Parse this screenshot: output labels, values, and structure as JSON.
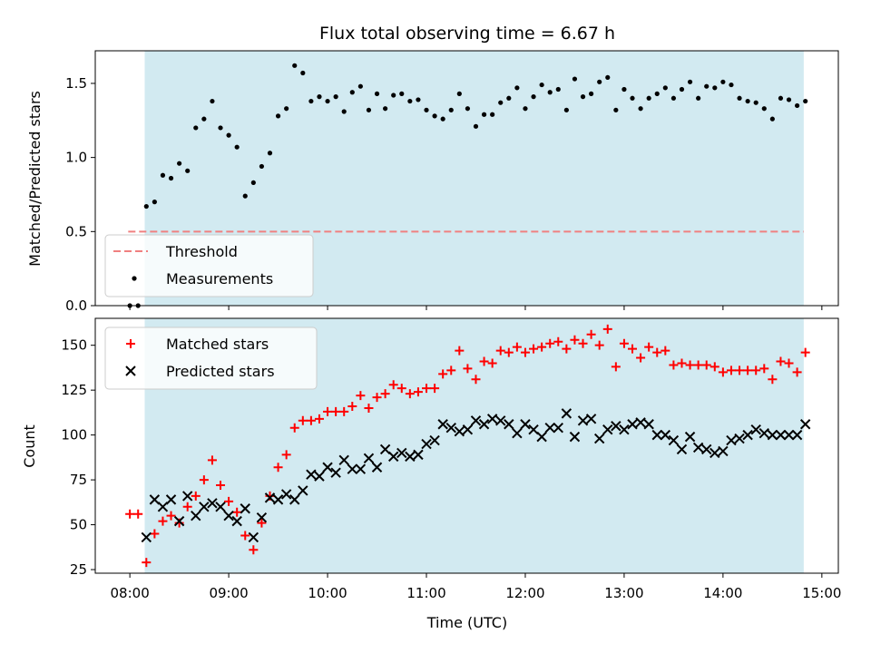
{
  "chart_data": {
    "type": "scatter",
    "title": "Flux total observing time = 6.67 h",
    "colors": {
      "shade": "#add8e6",
      "threshold": "#f08080",
      "measurements": "#000000",
      "matched": "#ff0000",
      "predicted": "#000000"
    },
    "x_ticks": [
      "08:00",
      "09:00",
      "10:00",
      "11:00",
      "12:00",
      "13:00",
      "14:00",
      "15:00"
    ],
    "xlabel": "Time (UTC)",
    "xlim": [
      "07:39",
      "15:10"
    ],
    "shaded_interval": [
      "08:09",
      "14:49"
    ],
    "panels": [
      {
        "ylabel": "Matched/Predicted stars",
        "ylim": [
          0,
          1.72
        ],
        "y_ticks": [
          0.0,
          0.5,
          1.0,
          1.5
        ],
        "y_tick_labels": [
          "0.0",
          "0.5",
          "1.0",
          "1.5"
        ],
        "legend": {
          "placement": "lower-left",
          "entries": [
            "Threshold",
            "Measurements"
          ]
        },
        "threshold": {
          "name": "Threshold",
          "value": 0.5,
          "x_start": "07:59",
          "x_end": "14:49"
        },
        "series": [
          {
            "name": "Measurements",
            "marker": "dot",
            "x": [
              "08:00",
              "08:05",
              "08:10",
              "08:15",
              "08:20",
              "08:25",
              "08:30",
              "08:35",
              "08:40",
              "08:45",
              "08:50",
              "08:55",
              "09:00",
              "09:05",
              "09:10",
              "09:15",
              "09:20",
              "09:25",
              "09:30",
              "09:35",
              "09:40",
              "09:45",
              "09:50",
              "09:55",
              "10:00",
              "10:05",
              "10:10",
              "10:15",
              "10:20",
              "10:25",
              "10:30",
              "10:35",
              "10:40",
              "10:45",
              "10:50",
              "10:55",
              "11:00",
              "11:05",
              "11:10",
              "11:15",
              "11:20",
              "11:25",
              "11:30",
              "11:35",
              "11:40",
              "11:45",
              "11:50",
              "11:55",
              "12:00",
              "12:05",
              "12:10",
              "12:15",
              "12:20",
              "12:25",
              "12:30",
              "12:35",
              "12:40",
              "12:45",
              "12:50",
              "12:55",
              "13:00",
              "13:05",
              "13:10",
              "13:15",
              "13:20",
              "13:25",
              "13:30",
              "13:35",
              "13:40",
              "13:45",
              "13:50",
              "13:55",
              "14:00",
              "14:05",
              "14:10",
              "14:15",
              "14:20",
              "14:25",
              "14:30",
              "14:35",
              "14:40",
              "14:45",
              "14:50"
            ],
            "y": [
              0.0,
              0.0,
              0.67,
              0.7,
              0.88,
              0.86,
              0.96,
              0.91,
              1.2,
              1.26,
              1.38,
              1.2,
              1.15,
              1.07,
              0.74,
              0.83,
              0.94,
              1.03,
              1.28,
              1.33,
              1.62,
              1.57,
              1.38,
              1.41,
              1.38,
              1.41,
              1.31,
              1.44,
              1.48,
              1.32,
              1.43,
              1.33,
              1.42,
              1.43,
              1.38,
              1.39,
              1.32,
              1.28,
              1.26,
              1.32,
              1.43,
              1.33,
              1.21,
              1.29,
              1.29,
              1.37,
              1.4,
              1.47,
              1.33,
              1.41,
              1.49,
              1.44,
              1.46,
              1.32,
              1.53,
              1.41,
              1.43,
              1.51,
              1.54,
              1.32,
              1.46,
              1.4,
              1.33,
              1.4,
              1.43,
              1.47,
              1.4,
              1.46,
              1.51,
              1.4,
              1.48,
              1.47,
              1.51,
              1.49,
              1.4,
              1.38,
              1.37,
              1.33,
              1.26,
              1.4,
              1.39,
              1.35,
              1.38
            ]
          }
        ]
      },
      {
        "ylabel": "Count",
        "ylim": [
          23,
          165
        ],
        "y_ticks": [
          25,
          50,
          75,
          100,
          125,
          150
        ],
        "y_tick_labels": [
          "25",
          "50",
          "75",
          "100",
          "125",
          "150"
        ],
        "legend": {
          "placement": "upper-left",
          "entries": [
            "Matched stars",
            "Predicted stars"
          ]
        },
        "series": [
          {
            "name": "Matched stars",
            "marker": "plus",
            "x": [
              "08:00",
              "08:05",
              "08:10",
              "08:15",
              "08:20",
              "08:25",
              "08:30",
              "08:35",
              "08:40",
              "08:45",
              "08:50",
              "08:55",
              "09:00",
              "09:05",
              "09:10",
              "09:15",
              "09:20",
              "09:25",
              "09:30",
              "09:35",
              "09:40",
              "09:45",
              "09:50",
              "09:55",
              "10:00",
              "10:05",
              "10:10",
              "10:15",
              "10:20",
              "10:25",
              "10:30",
              "10:35",
              "10:40",
              "10:45",
              "10:50",
              "10:55",
              "11:00",
              "11:05",
              "11:10",
              "11:15",
              "11:20",
              "11:25",
              "11:30",
              "11:35",
              "11:40",
              "11:45",
              "11:50",
              "11:55",
              "12:00",
              "12:05",
              "12:10",
              "12:15",
              "12:20",
              "12:25",
              "12:30",
              "12:35",
              "12:40",
              "12:45",
              "12:50",
              "12:55",
              "13:00",
              "13:05",
              "13:10",
              "13:15",
              "13:20",
              "13:25",
              "13:30",
              "13:35",
              "13:40",
              "13:45",
              "13:50",
              "13:55",
              "14:00",
              "14:05",
              "14:10",
              "14:15",
              "14:20",
              "14:25",
              "14:30",
              "14:35",
              "14:40",
              "14:45",
              "14:50"
            ],
            "y": [
              56,
              56,
              29,
              45,
              52,
              55,
              51,
              60,
              66,
              75,
              86,
              72,
              63,
              57,
              44,
              36,
              51,
              66,
              82,
              89,
              104,
              108,
              108,
              109,
              113,
              113,
              113,
              116,
              122,
              115,
              121,
              123,
              128,
              126,
              123,
              124,
              126,
              126,
              134,
              136,
              147,
              137,
              131,
              141,
              140,
              147,
              146,
              149,
              146,
              148,
              149,
              151,
              152,
              148,
              153,
              151,
              156,
              150,
              159,
              138,
              151,
              148,
              143,
              149,
              146,
              147,
              139,
              140,
              139,
              139,
              139,
              138,
              135,
              136,
              136,
              136,
              136,
              137,
              131,
              141,
              140,
              135,
              146
            ]
          },
          {
            "name": "Predicted stars",
            "marker": "x",
            "x": [
              "08:10",
              "08:15",
              "08:20",
              "08:25",
              "08:30",
              "08:35",
              "08:40",
              "08:45",
              "08:50",
              "08:55",
              "09:00",
              "09:05",
              "09:10",
              "09:15",
              "09:20",
              "09:25",
              "09:30",
              "09:35",
              "09:40",
              "09:45",
              "09:50",
              "09:55",
              "10:00",
              "10:05",
              "10:10",
              "10:15",
              "10:20",
              "10:25",
              "10:30",
              "10:35",
              "10:40",
              "10:45",
              "10:50",
              "10:55",
              "11:00",
              "11:05",
              "11:10",
              "11:15",
              "11:20",
              "11:25",
              "11:30",
              "11:35",
              "11:40",
              "11:45",
              "11:50",
              "11:55",
              "12:00",
              "12:05",
              "12:10",
              "12:15",
              "12:20",
              "12:25",
              "12:30",
              "12:35",
              "12:40",
              "12:45",
              "12:50",
              "12:55",
              "13:00",
              "13:05",
              "13:10",
              "13:15",
              "13:20",
              "13:25",
              "13:30",
              "13:35",
              "13:40",
              "13:45",
              "13:50",
              "13:55",
              "14:00",
              "14:05",
              "14:10",
              "14:15",
              "14:20",
              "14:25",
              "14:30",
              "14:35",
              "14:40",
              "14:45",
              "14:50"
            ],
            "y": [
              43,
              64,
              60,
              64,
              52,
              66,
              55,
              60,
              62,
              60,
              55,
              52,
              59,
              43,
              54,
              65,
              64,
              67,
              64,
              69,
              78,
              77,
              82,
              79,
              86,
              81,
              81,
              87,
              82,
              92,
              88,
              90,
              88,
              89,
              95,
              97,
              106,
              104,
              102,
              103,
              108,
              106,
              109,
              108,
              106,
              101,
              106,
              103,
              99,
              104,
              104,
              112,
              99,
              108,
              109,
              98,
              103,
              105,
              103,
              106,
              107,
              106,
              100,
              100,
              97,
              92,
              99,
              93,
              92,
              90,
              91,
              97,
              98,
              100,
              103,
              101,
              100,
              100,
              100,
              100,
              106
            ]
          }
        ]
      }
    ]
  }
}
